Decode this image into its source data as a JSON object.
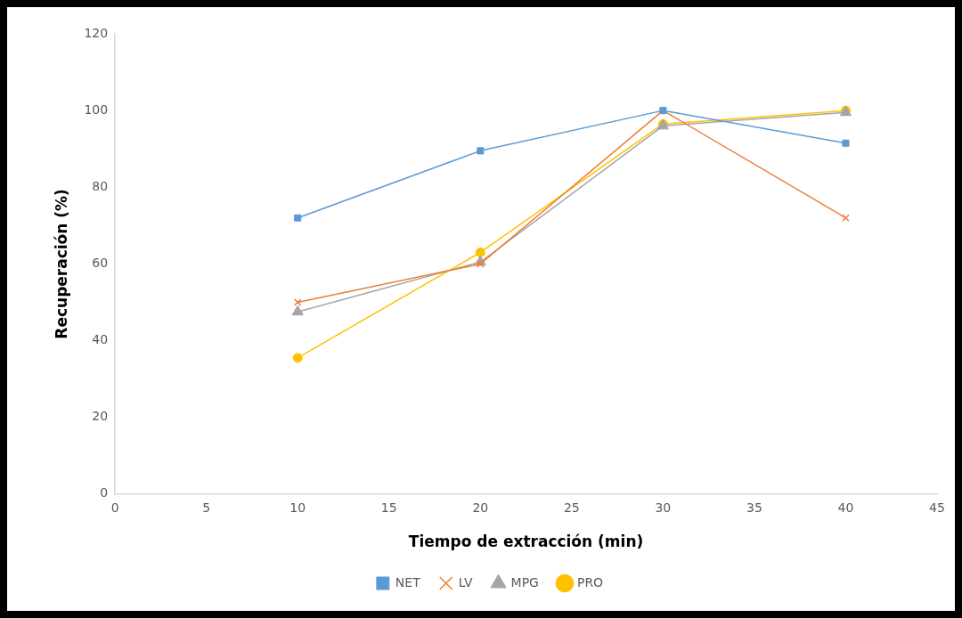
{
  "chart_data": {
    "type": "line",
    "xlabel": "Tiempo de extracción (min)",
    "ylabel": "Recuperación (%)",
    "x": [
      10,
      20,
      30,
      40
    ],
    "series": [
      {
        "name": "NET",
        "color": "#5b9bd5",
        "marker": "square",
        "values": [
          72,
          89.5,
          100,
          91.5
        ]
      },
      {
        "name": "LV",
        "color": "#ed7d31",
        "marker": "cross",
        "values": [
          50,
          60,
          100,
          72
        ]
      },
      {
        "name": "MPG",
        "color": "#a5a5a5",
        "marker": "triangle",
        "values": [
          47.5,
          60.5,
          96,
          99.5
        ]
      },
      {
        "name": "PRO",
        "color": "#ffc000",
        "marker": "circle",
        "values": [
          35.5,
          63,
          96.5,
          100
        ]
      }
    ],
    "xlim": [
      0,
      45
    ],
    "xticks": [
      0,
      5,
      10,
      15,
      20,
      25,
      30,
      35,
      40,
      45
    ],
    "ylim": [
      0,
      120
    ],
    "yticks": [
      0,
      20,
      40,
      60,
      80,
      100,
      120
    ],
    "grid": false,
    "legend": "bottom"
  }
}
